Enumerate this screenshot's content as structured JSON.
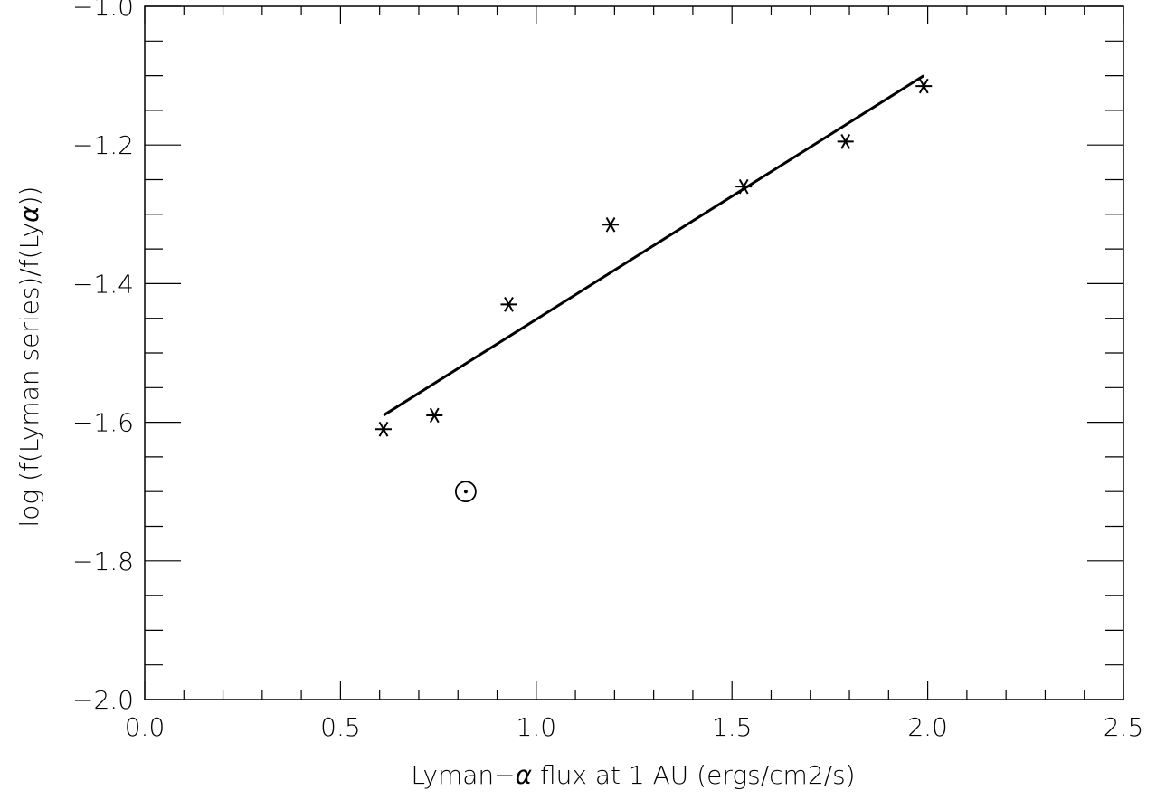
{
  "chart_data": {
    "type": "scatter",
    "title": "",
    "xlabel": "Lyman−",
    "xlabel_symbol": "α",
    "xlabel_rest": " flux at 1 AU (ergs/cm2/s)",
    "ylabel": "log (f(Lyman series)/f(Ly",
    "ylabel_symbol": "α",
    "ylabel_rest": "))",
    "xlim": [
      0.0,
      2.5
    ],
    "ylim": [
      -2.0,
      -1.0
    ],
    "x_ticks": [
      {
        "value": 0.0,
        "label": "0.0"
      },
      {
        "value": 0.5,
        "label": "0.5"
      },
      {
        "value": 1.0,
        "label": "1.0"
      },
      {
        "value": 1.5,
        "label": "1.5"
      },
      {
        "value": 2.0,
        "label": "2.0"
      },
      {
        "value": 2.5,
        "label": "2.5"
      }
    ],
    "y_ticks": [
      {
        "value": -2.0,
        "label": "−2.0"
      },
      {
        "value": -1.8,
        "label": "−1.8"
      },
      {
        "value": -1.6,
        "label": "−1.6"
      },
      {
        "value": -1.4,
        "label": "−1.4"
      },
      {
        "value": -1.2,
        "label": "−1.2"
      },
      {
        "value": -1.0,
        "label": "−1.0"
      }
    ],
    "x_minor_step": 0.1,
    "y_minor_step": 0.05,
    "grid": false,
    "legend": "none",
    "series": [
      {
        "marker": "asterisk",
        "points": [
          {
            "x": 0.61,
            "y": -1.61
          },
          {
            "x": 0.74,
            "y": -1.59
          },
          {
            "x": 0.93,
            "y": -1.43
          },
          {
            "x": 1.19,
            "y": -1.315
          },
          {
            "x": 1.53,
            "y": -1.26
          },
          {
            "x": 1.79,
            "y": -1.195
          },
          {
            "x": 1.99,
            "y": -1.115
          }
        ]
      },
      {
        "marker": "sun-symbol",
        "points": [
          {
            "x": 0.82,
            "y": -1.7
          }
        ]
      }
    ],
    "fit_line": {
      "x": [
        0.61,
        1.99
      ],
      "y": [
        -1.59,
        -1.1
      ]
    },
    "colors": {
      "ink": "#000000",
      "background": "#ffffff"
    }
  }
}
